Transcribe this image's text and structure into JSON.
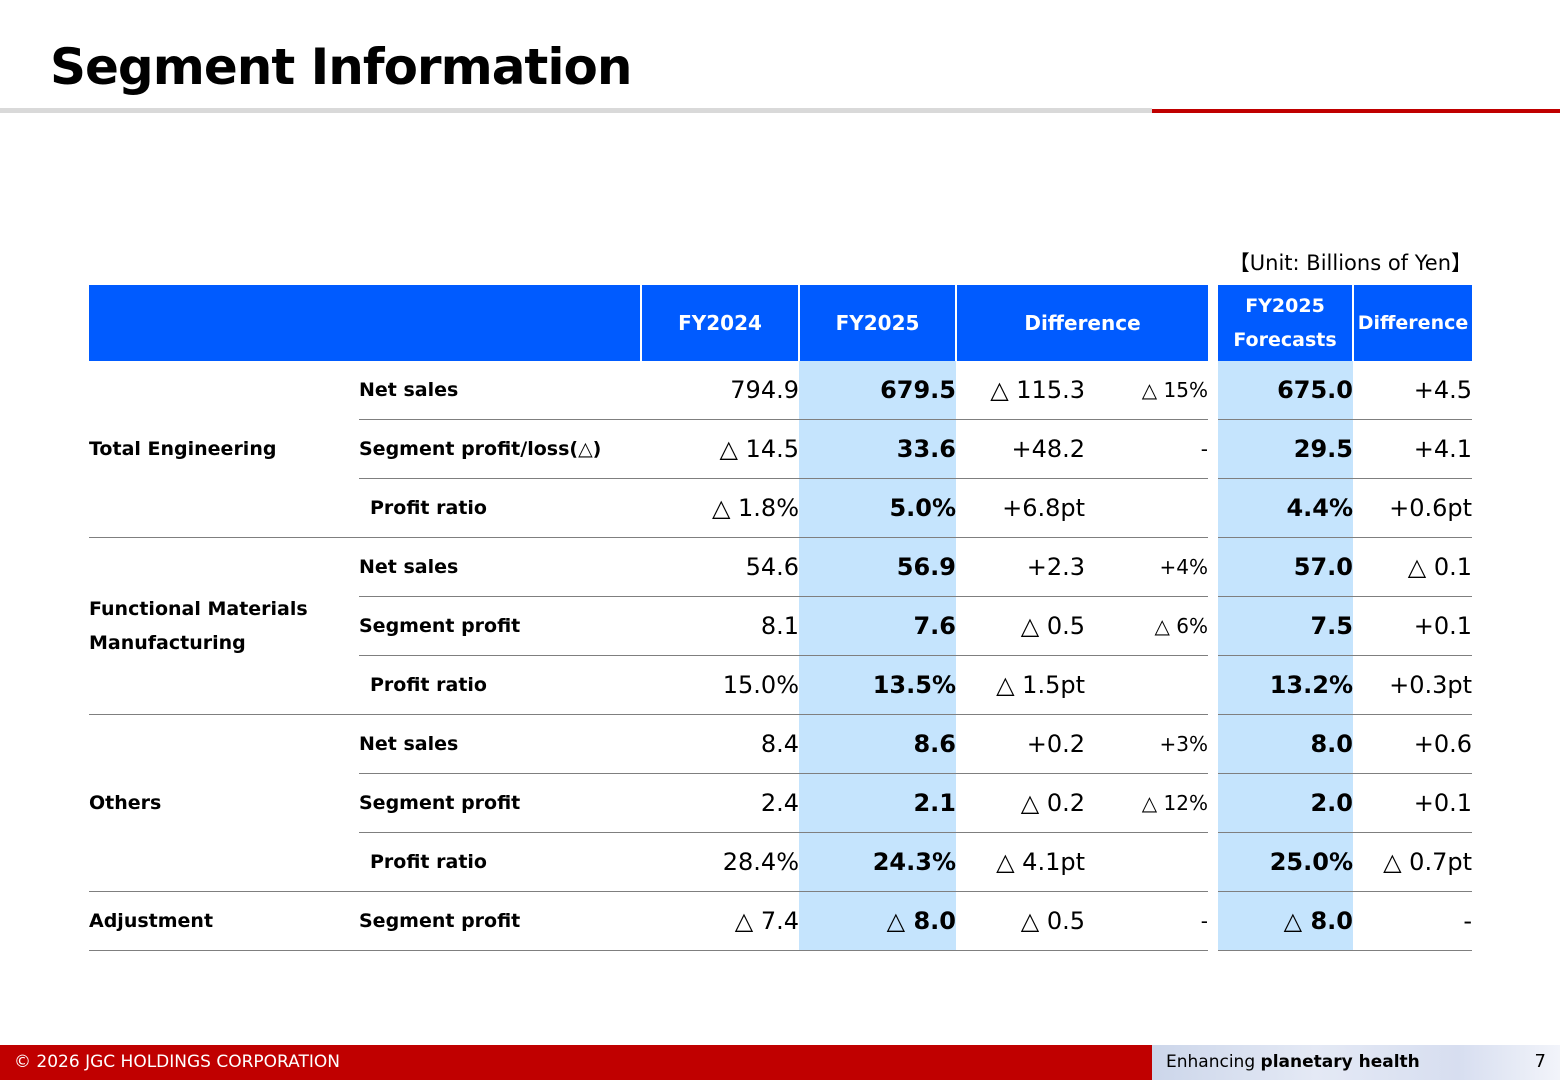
{
  "title": "Segment Information",
  "unit": "【Unit: Billions of Yen】",
  "header": {
    "fy2024": "FY2024",
    "fy2025": "FY2025",
    "difference": "Difference",
    "forecasts_line1": "FY2025",
    "forecasts_line2": "Forecasts",
    "forecast_difference": "Difference"
  },
  "segments": [
    {
      "name_line1": "Total Engineering",
      "name_line2": "",
      "rows": [
        {
          "item": "Net sales",
          "fy2024": "794.9",
          "fy2025": "679.5",
          "diff": "△ 115.3",
          "pct": "△ 15%",
          "forecast": "675.0",
          "forecast_diff": "+4.5"
        },
        {
          "item": "Segment profit/loss(△)",
          "fy2024": "△ 14.5",
          "fy2025": "33.6",
          "diff": "+48.2",
          "pct": "-",
          "forecast": "29.5",
          "forecast_diff": "+4.1"
        },
        {
          "item": "Profit ratio",
          "fy2024": "△ 1.8%",
          "fy2025": "5.0%",
          "diff": "+6.8pt",
          "pct": "",
          "forecast": "4.4%",
          "forecast_diff": "+0.6pt"
        }
      ]
    },
    {
      "name_line1": "Functional Materials",
      "name_line2": "Manufacturing",
      "rows": [
        {
          "item": "Net sales",
          "fy2024": "54.6",
          "fy2025": "56.9",
          "diff": "+2.3",
          "pct": "+4%",
          "forecast": "57.0",
          "forecast_diff": "△ 0.1"
        },
        {
          "item": "Segment profit",
          "fy2024": "8.1",
          "fy2025": "7.6",
          "diff": "△ 0.5",
          "pct": "△ 6%",
          "forecast": "7.5",
          "forecast_diff": "+0.1"
        },
        {
          "item": "Profit ratio",
          "fy2024": "15.0%",
          "fy2025": "13.5%",
          "diff": "△ 1.5pt",
          "pct": "",
          "forecast": "13.2%",
          "forecast_diff": "+0.3pt"
        }
      ]
    },
    {
      "name_line1": "Others",
      "name_line2": "",
      "rows": [
        {
          "item": "Net sales",
          "fy2024": "8.4",
          "fy2025": "8.6",
          "diff": "+0.2",
          "pct": "+3%",
          "forecast": "8.0",
          "forecast_diff": "+0.6"
        },
        {
          "item": "Segment profit",
          "fy2024": "2.4",
          "fy2025": "2.1",
          "diff": "△ 0.2",
          "pct": "△ 12%",
          "forecast": "2.0",
          "forecast_diff": "+0.1"
        },
        {
          "item": "Profit ratio",
          "fy2024": "28.4%",
          "fy2025": "24.3%",
          "diff": "△ 4.1pt",
          "pct": "",
          "forecast": "25.0%",
          "forecast_diff": "△ 0.7pt"
        }
      ]
    },
    {
      "name_line1": "Adjustment",
      "name_line2": "",
      "rows": [
        {
          "item": "Segment profit",
          "fy2024": "△ 7.4",
          "fy2025": "△ 8.0",
          "diff": "△ 0.5",
          "pct": "-",
          "forecast": "△ 8.0",
          "forecast_diff": "-"
        }
      ]
    }
  ],
  "footer": {
    "copyright": "© 2026 JGC HOLDINGS CORPORATION",
    "tagline_prefix": "Enhancing ",
    "tagline_bold": "planetary health",
    "page_number": "7"
  },
  "colors": {
    "header_blue": "#005bff",
    "highlight_blue": "#c5e4fd",
    "accent_red": "#c00000"
  }
}
